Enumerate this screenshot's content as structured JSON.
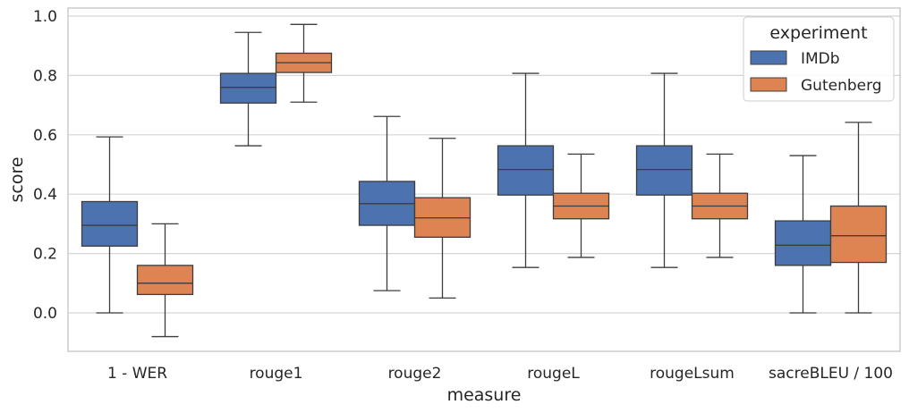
{
  "chart_data": {
    "type": "boxplot",
    "xlabel": "measure",
    "ylabel": "score",
    "ylim": [
      -0.13,
      1.03
    ],
    "yticks": [
      "0.0",
      "0.2",
      "0.4",
      "0.6",
      "0.8",
      "1.0"
    ],
    "grid": "horizontal",
    "legend": {
      "title": "experiment",
      "position": "top-right"
    },
    "categories": [
      "1 - WER",
      "rouge1",
      "rouge2",
      "rougeL",
      "rougeLsum",
      "sacreBLEU / 100"
    ],
    "series": [
      {
        "name": "IMDb",
        "color": "#4c72b0",
        "boxes": [
          {
            "whisker_low": 0.0,
            "q1": 0.225,
            "median": 0.295,
            "q3": 0.375,
            "whisker_high": 0.593
          },
          {
            "whisker_low": 0.563,
            "q1": 0.707,
            "median": 0.76,
            "q3": 0.807,
            "whisker_high": 0.945
          },
          {
            "whisker_low": 0.075,
            "q1": 0.295,
            "median": 0.368,
            "q3": 0.443,
            "whisker_high": 0.662
          },
          {
            "whisker_low": 0.153,
            "q1": 0.397,
            "median": 0.483,
            "q3": 0.563,
            "whisker_high": 0.807
          },
          {
            "whisker_low": 0.153,
            "q1": 0.397,
            "median": 0.483,
            "q3": 0.563,
            "whisker_high": 0.807
          },
          {
            "whisker_low": 0.0,
            "q1": 0.16,
            "median": 0.228,
            "q3": 0.31,
            "whisker_high": 0.53
          }
        ]
      },
      {
        "name": "Gutenberg",
        "color": "#dd8452",
        "boxes": [
          {
            "whisker_low": -0.08,
            "q1": 0.062,
            "median": 0.1,
            "q3": 0.16,
            "whisker_high": 0.3
          },
          {
            "whisker_low": 0.71,
            "q1": 0.81,
            "median": 0.843,
            "q3": 0.875,
            "whisker_high": 0.972
          },
          {
            "whisker_low": 0.05,
            "q1": 0.255,
            "median": 0.32,
            "q3": 0.388,
            "whisker_high": 0.588
          },
          {
            "whisker_low": 0.187,
            "q1": 0.317,
            "median": 0.36,
            "q3": 0.403,
            "whisker_high": 0.535
          },
          {
            "whisker_low": 0.187,
            "q1": 0.317,
            "median": 0.36,
            "q3": 0.403,
            "whisker_high": 0.535
          },
          {
            "whisker_low": 0.0,
            "q1": 0.17,
            "median": 0.26,
            "q3": 0.36,
            "whisker_high": 0.642
          }
        ]
      }
    ]
  }
}
